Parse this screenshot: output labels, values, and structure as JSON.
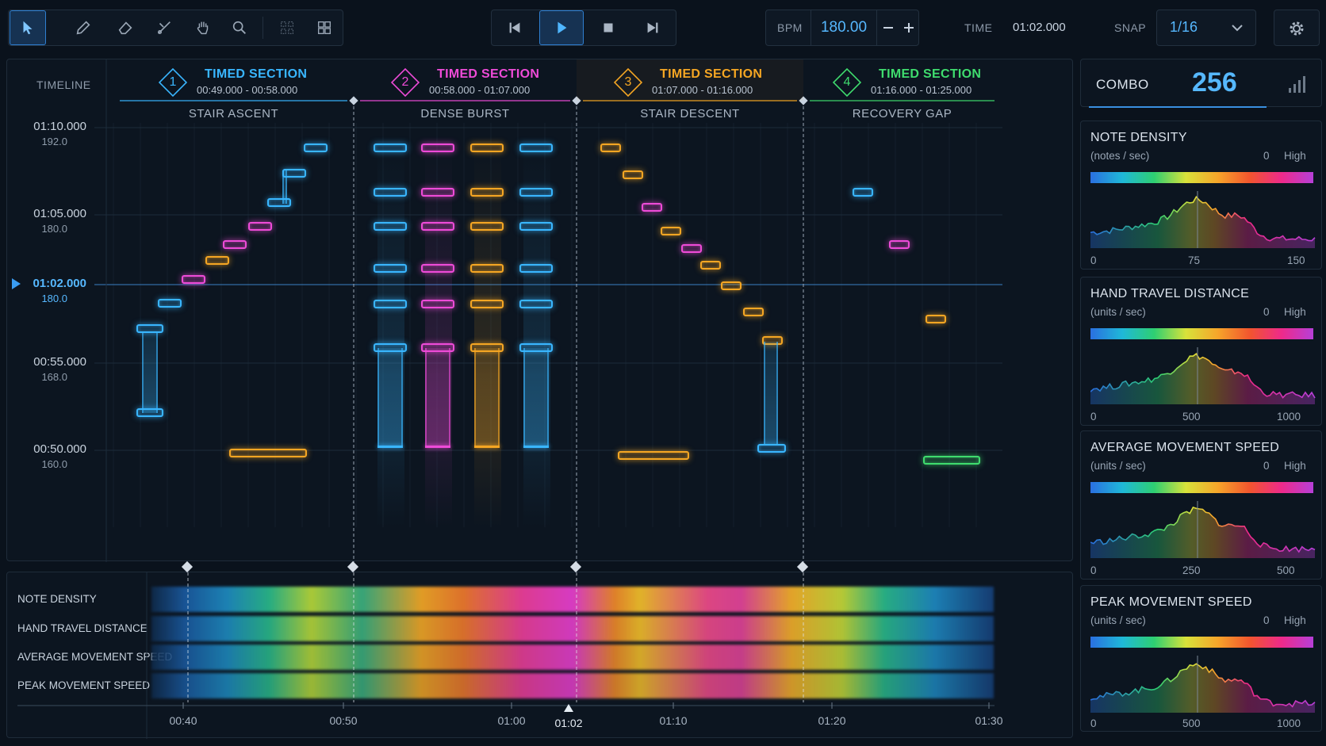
{
  "toolbar": {
    "tools": [
      "select-tool",
      "pencil-tool",
      "eraser-tool",
      "cut-tool",
      "hand-tool",
      "zoom-tool",
      "select-grid-tool",
      "grid-tool"
    ],
    "bpm_label": "BPM",
    "bpm_value": "180.00",
    "time_label": "TIME",
    "time_value": "01:02.000",
    "snap_label": "SNAP",
    "snap_value": "1/16"
  },
  "timeline": {
    "label": "TIMELINE",
    "sections": [
      {
        "num": "1",
        "title": "TIMED SECTION",
        "range": "00:49.000 - 00:58.000",
        "name": "STAIR ASCENT",
        "color": "#39b6ff"
      },
      {
        "num": "2",
        "title": "TIMED SECTION",
        "range": "00:58.000 - 01:07.000",
        "name": "DENSE BURST",
        "color": "#ee4bd8"
      },
      {
        "num": "3",
        "title": "TIMED SECTION",
        "range": "01:07.000 - 01:16.000",
        "name": "STAIR DESCENT",
        "color": "#f5a623"
      },
      {
        "num": "4",
        "title": "TIMED SECTION",
        "range": "01:16.000 - 01:25.000",
        "name": "RECOVERY GAP",
        "color": "#3fdc6e"
      }
    ],
    "markers": [
      {
        "time": "01:10.000",
        "bpm": "192.0"
      },
      {
        "time": "01:05.000",
        "bpm": "180.0"
      },
      {
        "time": "01:02.000",
        "bpm": "180.0"
      },
      {
        "time": "00:55.000",
        "bpm": "168.0"
      },
      {
        "time": "00:50.000",
        "bpm": "160.0"
      }
    ]
  },
  "heat": {
    "rows": [
      "NOTE DENSITY",
      "HAND TRAVEL DISTANCE",
      "AVERAGE MOVEMENT SPEED",
      "PEAK MOVEMENT SPEED"
    ],
    "ticks": [
      "00:40",
      "00:50",
      "01:00",
      "01:02",
      "01:10",
      "01:20",
      "01:30"
    ]
  },
  "stats": {
    "combo_label": "COMBO",
    "combo_value": "256",
    "panels": [
      {
        "title": "NOTE DENSITY",
        "unit": "(notes / sec)",
        "lo": "0",
        "hi": "High",
        "t0": "0",
        "t1": "75",
        "t2": "150"
      },
      {
        "title": "HAND TRAVEL DISTANCE",
        "unit": "(units / sec)",
        "lo": "0",
        "hi": "High",
        "t0": "0",
        "t1": "500",
        "t2": "1000"
      },
      {
        "title": "AVERAGE  MOVEMENT SPEED",
        "unit": "(units / sec)",
        "lo": "0",
        "hi": "High",
        "t0": "0",
        "t1": "250",
        "t2": "500"
      },
      {
        "title": "PEAK MOVEMENT SPEED",
        "unit": "(units / sec)",
        "lo": "0",
        "hi": "High",
        "t0": "0",
        "t1": "500",
        "t2": "1000"
      }
    ]
  },
  "colors": {
    "blue": "#39b6ff",
    "pink": "#ee4bd8",
    "orange": "#f5a623",
    "green": "#3fdc6e",
    "accent": "#56b8ff"
  }
}
